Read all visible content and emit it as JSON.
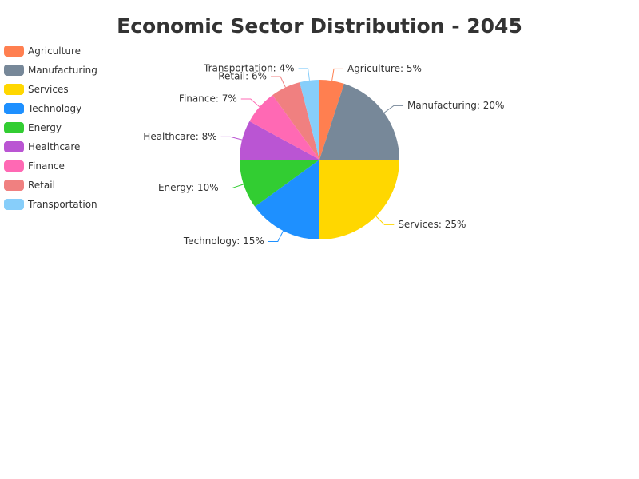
{
  "chart_data": {
    "type": "pie",
    "title": "Economic Sector Distribution - 2045",
    "legend_position": "top-left",
    "slices": [
      {
        "name": "Agriculture",
        "value": 5,
        "label": "Agriculture: 5%",
        "color": "#FF7F50"
      },
      {
        "name": "Manufacturing",
        "value": 20,
        "label": "Manufacturing: 20%",
        "color": "#778899"
      },
      {
        "name": "Services",
        "value": 25,
        "label": "Services: 25%",
        "color": "#FFD700"
      },
      {
        "name": "Technology",
        "value": 15,
        "label": "Technology: 15%",
        "color": "#1E90FF"
      },
      {
        "name": "Energy",
        "value": 10,
        "label": "Energy: 10%",
        "color": "#32CD32"
      },
      {
        "name": "Healthcare",
        "value": 8,
        "label": "Healthcare: 8%",
        "color": "#BA55D3"
      },
      {
        "name": "Finance",
        "value": 7,
        "label": "Finance: 7%",
        "color": "#FF69B4"
      },
      {
        "name": "Retail",
        "value": 6,
        "label": "Retail: 6%",
        "color": "#F08080"
      },
      {
        "name": "Transportation",
        "value": 4,
        "label": "Transportation: 4%",
        "color": "#87CEFA"
      }
    ]
  }
}
